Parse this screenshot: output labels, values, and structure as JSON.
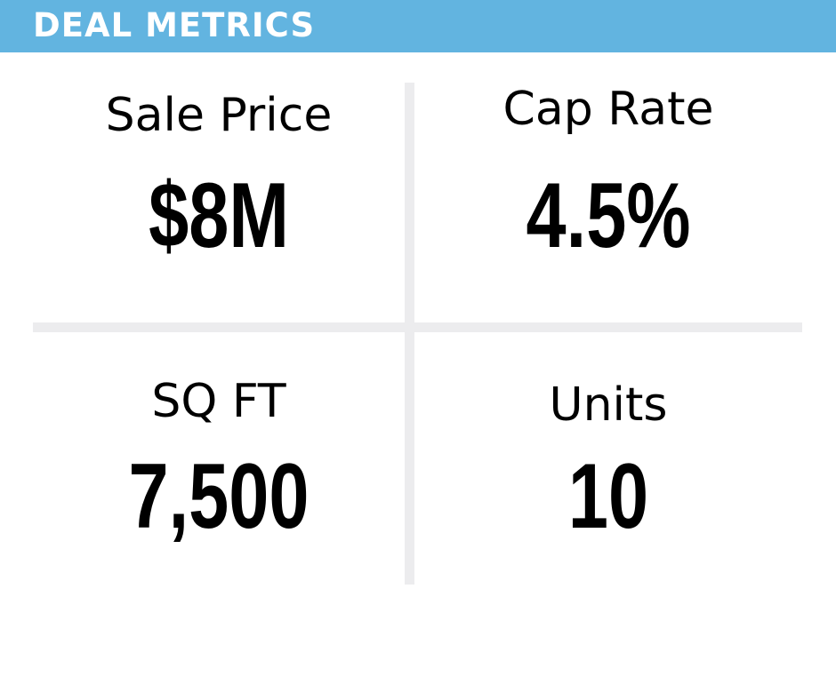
{
  "header": {
    "title": "DEAL METRICS"
  },
  "metrics": [
    {
      "label": "Sale Price",
      "value": "$8M"
    },
    {
      "label": "Cap Rate",
      "value": "4.5%"
    },
    {
      "label": "SQ FT",
      "value": "7,500"
    },
    {
      "label": "Units",
      "value": "10"
    }
  ],
  "colors": {
    "header_background": "#62b4e0",
    "header_text": "#ffffff",
    "divider": "#ececee",
    "text": "#000000"
  }
}
